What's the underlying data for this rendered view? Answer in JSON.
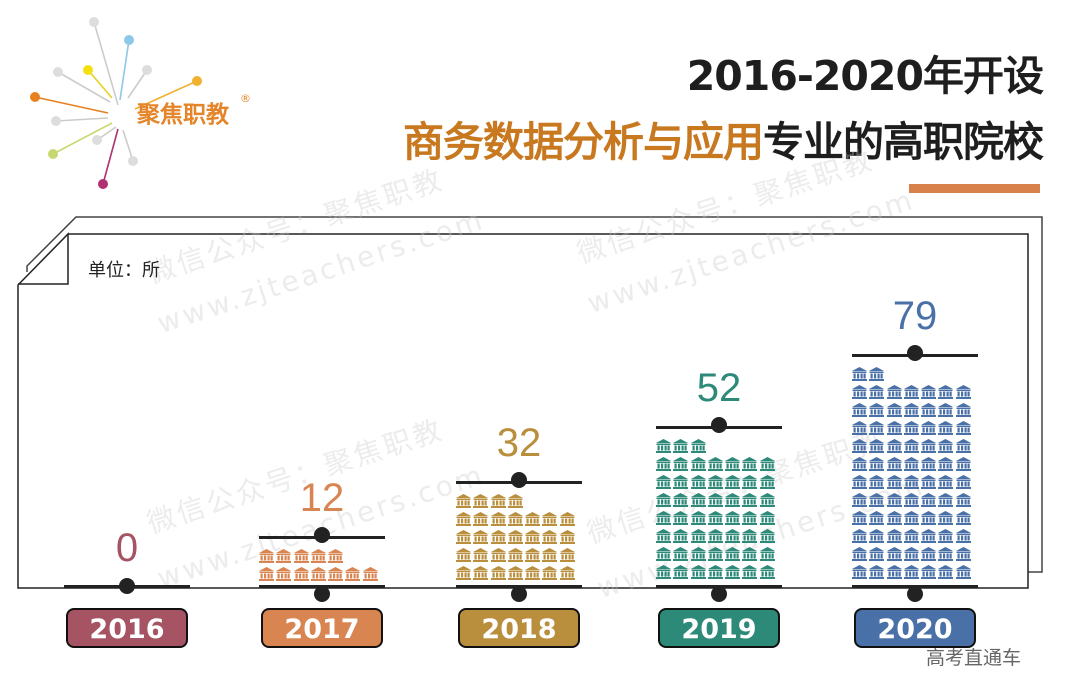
{
  "logo": {
    "text": "聚焦职教",
    "reg": "®"
  },
  "title": {
    "line1": "2016-2020年开设",
    "line2_highlight": "商务数据分析与应用",
    "line2_rest": "专业的高职院校"
  },
  "unit_label": "单位：所",
  "watermarks": [
    "微信公众号：聚焦职教",
    "www.zjteachers.com"
  ],
  "footer_watermark": "高考直通车",
  "colors": {
    "2016": "#a65464",
    "2017": "#d98552",
    "2018": "#b98f3e",
    "2019": "#2d8a78",
    "2020": "#4a70a8",
    "title_accent": "#c8781e",
    "title_bar": "#d9814a"
  },
  "chart_data": {
    "type": "bar",
    "title": "2016-2020年开设商务数据分析与应用专业的高职院校",
    "unit": "单位：所",
    "categories": [
      "2016",
      "2017",
      "2018",
      "2019",
      "2020"
    ],
    "values": [
      0,
      12,
      32,
      52,
      79
    ],
    "value_labels": [
      "0",
      "12",
      "32",
      "52",
      "79"
    ],
    "representation": "pictogram, one building icon per school, 7 per row",
    "xlabel": "",
    "ylabel": "",
    "grid": false,
    "legend": null
  }
}
